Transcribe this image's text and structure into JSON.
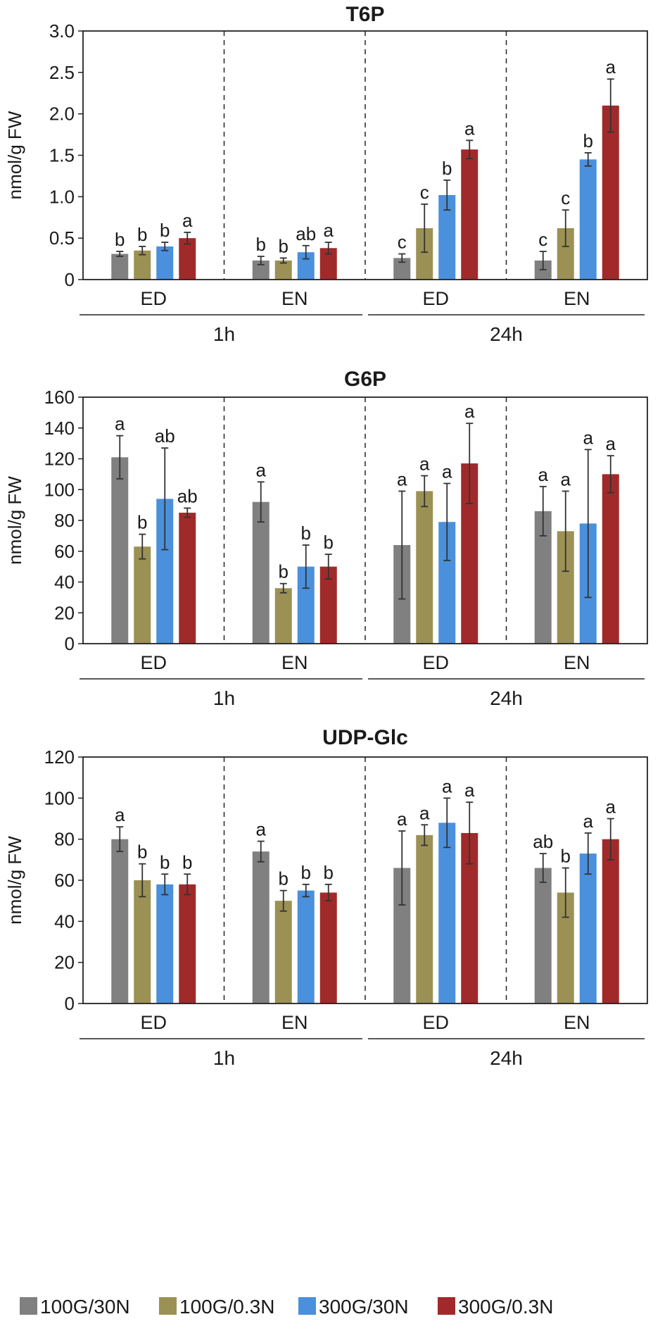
{
  "legend": {
    "series": [
      {
        "name": "100G/30N",
        "color": "#808080"
      },
      {
        "name": "100G/0.3N",
        "color": "#9b9154"
      },
      {
        "name": "300G/30N",
        "color": "#4a90dc"
      },
      {
        "name": "300G/0.3N",
        "color": "#a02a2a"
      }
    ]
  },
  "chart_data": [
    {
      "type": "bar",
      "title": "T6P",
      "ylabel": "nmol/g FW",
      "ylim": [
        0,
        3.0
      ],
      "yticks": [
        "0",
        "0.5",
        "1.0",
        "1.5",
        "2.0",
        "2.5",
        "3.0"
      ],
      "categories": [
        "ED",
        "EN",
        "ED",
        "EN"
      ],
      "time_groups": [
        {
          "label": "1h"
        },
        {
          "label": "24h"
        }
      ],
      "series": [
        {
          "name": "100G/30N",
          "values": [
            0.31,
            0.23,
            0.26,
            0.23
          ],
          "errors": [
            0.03,
            0.05,
            0.05,
            0.11
          ],
          "letters": [
            "b",
            "b",
            "c",
            "c"
          ]
        },
        {
          "name": "100G/0.3N",
          "values": [
            0.35,
            0.23,
            0.62,
            0.62
          ],
          "errors": [
            0.05,
            0.03,
            0.29,
            0.22
          ],
          "letters": [
            "b",
            "b",
            "c",
            "c"
          ]
        },
        {
          "name": "300G/30N",
          "values": [
            0.4,
            0.33,
            1.02,
            1.45
          ],
          "errors": [
            0.05,
            0.08,
            0.18,
            0.08
          ],
          "letters": [
            "b",
            "ab",
            "b",
            "b"
          ]
        },
        {
          "name": "300G/0.3N",
          "values": [
            0.5,
            0.38,
            1.57,
            2.1
          ],
          "errors": [
            0.07,
            0.07,
            0.11,
            0.32
          ],
          "letters": [
            "a",
            "a",
            "a",
            "a"
          ]
        }
      ]
    },
    {
      "type": "bar",
      "title": "G6P",
      "ylabel": "nmol/g FW",
      "ylim": [
        0,
        160
      ],
      "yticks": [
        "0",
        "20",
        "40",
        "60",
        "80",
        "100",
        "120",
        "140",
        "160"
      ],
      "categories": [
        "ED",
        "EN",
        "ED",
        "EN"
      ],
      "time_groups": [
        {
          "label": "1h"
        },
        {
          "label": "24h"
        }
      ],
      "series": [
        {
          "name": "100G/30N",
          "values": [
            121,
            92,
            64,
            86
          ],
          "errors": [
            14,
            13,
            35,
            16
          ],
          "letters": [
            "a",
            "a",
            "a",
            "a"
          ]
        },
        {
          "name": "100G/0.3N",
          "values": [
            63,
            36,
            99,
            73
          ],
          "errors": [
            8,
            3,
            10,
            26
          ],
          "letters": [
            "b",
            "b",
            "a",
            "a"
          ]
        },
        {
          "name": "300G/30N",
          "values": [
            94,
            50,
            79,
            78
          ],
          "errors": [
            33,
            14,
            25,
            48
          ],
          "letters": [
            "ab",
            "b",
            "a",
            "a"
          ]
        },
        {
          "name": "300G/0.3N",
          "values": [
            85,
            50,
            117,
            110
          ],
          "errors": [
            3,
            8,
            26,
            12
          ],
          "letters": [
            "ab",
            "b",
            "a",
            "a"
          ]
        }
      ]
    },
    {
      "type": "bar",
      "title": "UDP-Glc",
      "ylabel": "nmol/g FW",
      "ylim": [
        0,
        120
      ],
      "yticks": [
        "0",
        "20",
        "40",
        "60",
        "80",
        "100",
        "120"
      ],
      "categories": [
        "ED",
        "EN",
        "ED",
        "EN"
      ],
      "time_groups": [
        {
          "label": "1h"
        },
        {
          "label": "24h"
        }
      ],
      "series": [
        {
          "name": "100G/30N",
          "values": [
            80,
            74,
            66,
            66
          ],
          "errors": [
            6,
            5,
            18,
            7
          ],
          "letters": [
            "a",
            "a",
            "a",
            "ab"
          ]
        },
        {
          "name": "100G/0.3N",
          "values": [
            60,
            50,
            82,
            54
          ],
          "errors": [
            8,
            5,
            5,
            12
          ],
          "letters": [
            "b",
            "b",
            "a",
            "b"
          ]
        },
        {
          "name": "300G/30N",
          "values": [
            58,
            55,
            88,
            73
          ],
          "errors": [
            5,
            3,
            12,
            10
          ],
          "letters": [
            "b",
            "b",
            "a",
            "a"
          ]
        },
        {
          "name": "300G/0.3N",
          "values": [
            58,
            54,
            83,
            80
          ],
          "errors": [
            5,
            4,
            15,
            10
          ],
          "letters": [
            "b",
            "b",
            "a",
            "a"
          ]
        }
      ]
    }
  ]
}
